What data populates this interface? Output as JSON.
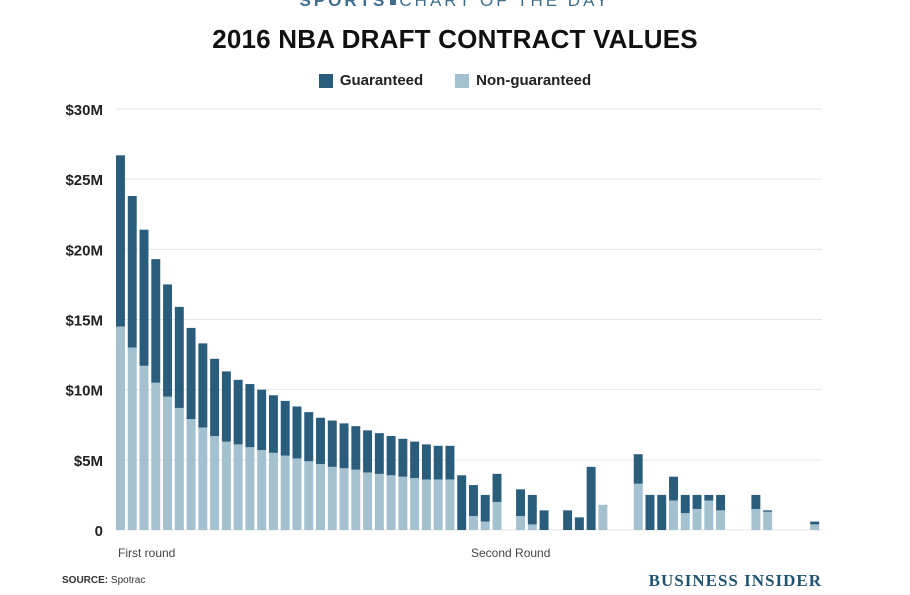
{
  "header": {
    "kicker_left": "SPORTS",
    "kicker_right": "CHART OF THE DAY",
    "title": "2016 NBA DRAFT CONTRACT VALUES"
  },
  "footer": {
    "source_label": "SOURCE:",
    "source_value": "Spotrac",
    "brand": "BUSINESS INSIDER"
  },
  "colors": {
    "guaranteed": "#2a5d7c",
    "non_guaranteed": "#a3c1cf",
    "grid": "#e6e6e6"
  },
  "chart_data": {
    "type": "bar",
    "stacked": true,
    "title": "2016 NBA DRAFT CONTRACT VALUES",
    "ylim": [
      0,
      30
    ],
    "y_ticks": [
      0,
      5,
      10,
      15,
      20,
      25,
      30
    ],
    "y_tick_labels": [
      "0",
      "$5M",
      "$10M",
      "$15M",
      "$20M",
      "$25M",
      "$30M"
    ],
    "grid": true,
    "legend": "top-center",
    "legend_entries": [
      "Guaranteed",
      "Non-guaranteed"
    ],
    "x_group_labels": [
      "First round",
      "Second Round"
    ],
    "x_group_start_index": [
      0,
      30
    ],
    "unit": "$M",
    "pick": [
      1,
      2,
      3,
      4,
      5,
      6,
      7,
      8,
      9,
      10,
      11,
      12,
      13,
      14,
      15,
      16,
      17,
      18,
      19,
      20,
      21,
      22,
      23,
      24,
      25,
      26,
      27,
      28,
      29,
      30,
      31,
      32,
      33,
      34,
      35,
      36,
      37,
      38,
      39,
      40,
      41,
      42,
      43,
      44,
      45,
      46,
      47,
      48,
      49,
      50,
      51,
      52,
      53,
      54,
      55,
      56,
      57,
      58,
      59,
      60
    ],
    "series": [
      {
        "name": "Non-guaranteed",
        "values": [
          14.5,
          13.0,
          11.7,
          10.5,
          9.5,
          8.7,
          7.9,
          7.3,
          6.7,
          6.3,
          6.1,
          5.9,
          5.7,
          5.5,
          5.3,
          5.1,
          4.9,
          4.7,
          4.5,
          4.4,
          4.3,
          4.1,
          4.0,
          3.9,
          3.8,
          3.7,
          3.6,
          3.6,
          3.6,
          0,
          1.0,
          0.6,
          2.0,
          0,
          1.0,
          0.4,
          0,
          0,
          0,
          0,
          0,
          1.8,
          0,
          0,
          3.3,
          0,
          0,
          2.1,
          1.2,
          1.5,
          2.1,
          1.4,
          0,
          0,
          1.5,
          1.3,
          0,
          0,
          0,
          0.4
        ]
      },
      {
        "name": "Guaranteed",
        "values": [
          12.2,
          10.8,
          9.7,
          8.8,
          8.0,
          7.2,
          6.5,
          6.0,
          5.5,
          5.0,
          4.6,
          4.5,
          4.3,
          4.1,
          3.9,
          3.7,
          3.5,
          3.3,
          3.3,
          3.2,
          3.1,
          3.0,
          2.9,
          2.8,
          2.7,
          2.6,
          2.5,
          2.4,
          2.4,
          3.9,
          2.2,
          1.9,
          2.0,
          0,
          1.9,
          2.1,
          1.4,
          0,
          1.4,
          0.9,
          4.5,
          0,
          0,
          0,
          2.1,
          2.5,
          2.5,
          1.7,
          1.3,
          1.0,
          0.4,
          1.1,
          0,
          0,
          1.0,
          0.1,
          0,
          0,
          0,
          0.2
        ]
      }
    ]
  }
}
